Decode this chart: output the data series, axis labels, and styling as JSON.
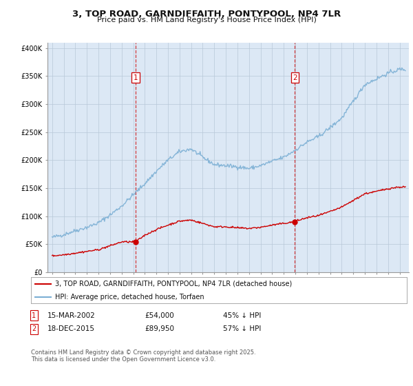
{
  "title_line1": "3, TOP ROAD, GARNDIFFAITH, PONTYPOOL, NP4 7LR",
  "title_line2": "Price paid vs. HM Land Registry's House Price Index (HPI)",
  "legend_label_red": "3, TOP ROAD, GARNDIFFAITH, PONTYPOOL, NP4 7LR (detached house)",
  "legend_label_blue": "HPI: Average price, detached house, Torfaen",
  "sale1_date": "15-MAR-2002",
  "sale1_price": 54000,
  "sale1_pct": "45% ↓ HPI",
  "sale2_date": "18-DEC-2015",
  "sale2_price": 89950,
  "sale2_pct": "57% ↓ HPI",
  "footnote": "Contains HM Land Registry data © Crown copyright and database right 2025.\nThis data is licensed under the Open Government Licence v3.0.",
  "sale1_year": 2002.21,
  "sale2_year": 2015.96,
  "red_color": "#cc0000",
  "blue_color": "#7bafd4",
  "vline_color": "#cc0000",
  "bg_color": "#dce8f5",
  "plot_bg": "#ffffff",
  "grid_color": "#b8c8d8",
  "ylim": [
    0,
    410000
  ],
  "xlim_start": 1994.6,
  "xlim_end": 2025.8,
  "hpi_years": [
    1995,
    1996,
    1997,
    1998,
    1999,
    2000,
    2001,
    2002,
    2003,
    2004,
    2005,
    2006,
    2007,
    2008,
    2009,
    2010,
    2011,
    2012,
    2013,
    2014,
    2015,
    2016,
    2017,
    2018,
    2019,
    2020,
    2021,
    2022,
    2023,
    2024,
    2025
  ],
  "hpi_vals": [
    62000,
    67000,
    74000,
    80000,
    88000,
    102000,
    118000,
    138000,
    158000,
    180000,
    200000,
    215000,
    220000,
    205000,
    192000,
    190000,
    188000,
    185000,
    190000,
    198000,
    205000,
    218000,
    232000,
    242000,
    258000,
    275000,
    305000,
    335000,
    345000,
    355000,
    362000
  ],
  "red_before_sale1": [
    [
      1995,
      29000
    ],
    [
      1996,
      31000
    ],
    [
      1997,
      34000
    ],
    [
      1998,
      37000
    ],
    [
      1999,
      40000
    ],
    [
      2000,
      47000
    ],
    [
      2001,
      54000
    ],
    [
      2002.21,
      54000
    ]
  ],
  "red_sale1_to_sale2": [
    [
      2002.21,
      54000
    ],
    [
      2003,
      66000
    ],
    [
      2004,
      76000
    ],
    [
      2005,
      84000
    ],
    [
      2006,
      91000
    ],
    [
      2007,
      93000
    ],
    [
      2008,
      87000
    ],
    [
      2009,
      81000
    ],
    [
      2010,
      81000
    ],
    [
      2011,
      79000
    ],
    [
      2012,
      78000
    ],
    [
      2013,
      80000
    ],
    [
      2014,
      84000
    ],
    [
      2015,
      87000
    ],
    [
      2015.96,
      89950
    ]
  ],
  "red_after_sale2": [
    [
      2015.96,
      89950
    ],
    [
      2016,
      91000
    ],
    [
      2017,
      97000
    ],
    [
      2018,
      101000
    ],
    [
      2019,
      108000
    ],
    [
      2020,
      116000
    ],
    [
      2021,
      128000
    ],
    [
      2022,
      140000
    ],
    [
      2023,
      144000
    ],
    [
      2024,
      149000
    ],
    [
      2025,
      152000
    ]
  ]
}
